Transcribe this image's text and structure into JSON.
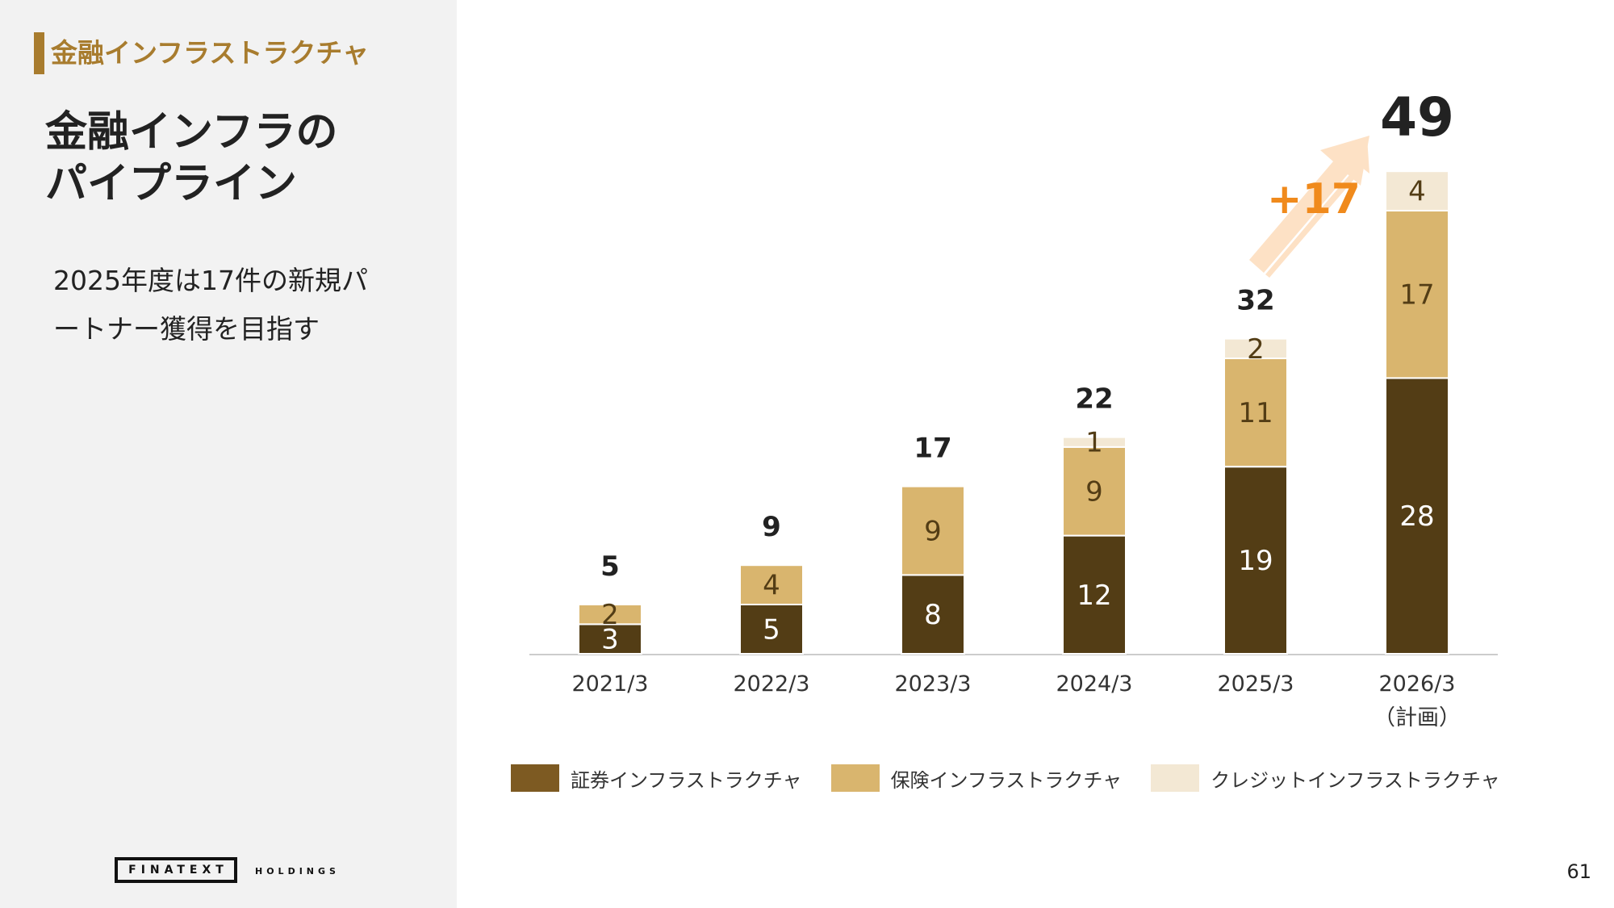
{
  "section": {
    "label": "金融インフラストラクチャ"
  },
  "title": {
    "line1": "金融インフラの",
    "line2": "パイプライン"
  },
  "description": {
    "line1": "2025年度は17件の新規パ",
    "line2": "ートナー獲得を目指す"
  },
  "logo": {
    "main": "FINATEXT",
    "sub": "HOLDINGS"
  },
  "page_number": "61",
  "colors": {
    "securities": "#533d15",
    "insurance": "#d9b56e",
    "credit": "#f3e8d4",
    "accent": "#a87c2e",
    "highlight": "#f08a1c"
  },
  "chart_data": {
    "type": "bar",
    "stacked": true,
    "categories": [
      "2021/3",
      "2022/3",
      "2023/3",
      "2024/3",
      "2025/3",
      "2026/3"
    ],
    "category_sublabels": [
      "",
      "",
      "",
      "",
      "",
      "（計画）"
    ],
    "series": [
      {
        "name": "証券インフラストラクチャ",
        "values": [
          3,
          5,
          8,
          12,
          19,
          28
        ]
      },
      {
        "name": "保険インフラストラクチャ",
        "values": [
          2,
          4,
          9,
          9,
          11,
          17
        ]
      },
      {
        "name": "クレジットインフラストラクチャ",
        "values": [
          0,
          0,
          0,
          1,
          2,
          4
        ]
      }
    ],
    "totals": [
      5,
      9,
      17,
      22,
      32,
      49
    ],
    "annotation": {
      "text": "+17"
    },
    "ylim": [
      0,
      52
    ],
    "grid": false,
    "legend_position": "bottom"
  }
}
